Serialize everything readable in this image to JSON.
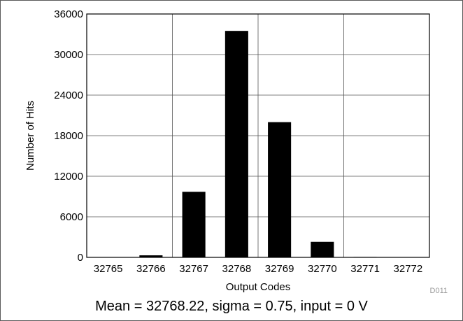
{
  "chart_data": {
    "type": "bar",
    "categories": [
      "32765",
      "32766",
      "32767",
      "32768",
      "32769",
      "32770",
      "32771",
      "32772"
    ],
    "values": [
      50,
      300,
      9700,
      33500,
      20000,
      2300,
      60,
      30
    ],
    "title": "",
    "xlabel": "Output Codes",
    "ylabel": "Number of Hits",
    "ylim": [
      0,
      36000
    ],
    "yticks": [
      0,
      6000,
      12000,
      18000,
      24000,
      30000,
      36000
    ],
    "grid": true,
    "bar_color": "#000000",
    "grid_color": "#555555"
  },
  "figure_id": "D011",
  "caption": "Mean = 32768.22, sigma = 0.75, input = 0 V"
}
